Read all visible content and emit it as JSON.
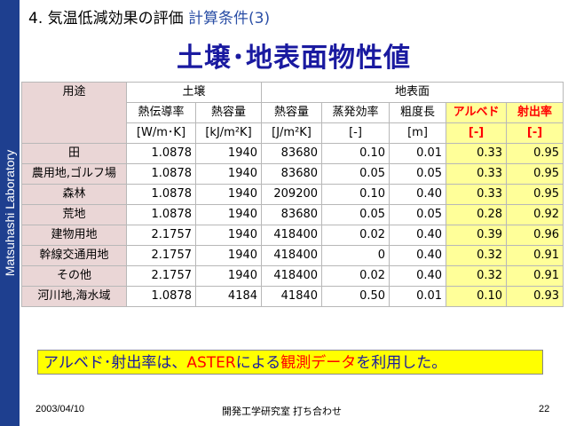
{
  "sidebar": {
    "label": "Matsuhashi Laboratory"
  },
  "heading": {
    "num": "4.",
    "main": "気温低減効果の評価",
    "sub": "計算条件(3)"
  },
  "title": "土壌･地表面物性値",
  "table": {
    "group_soil": "土壌",
    "group_surface": "地表面",
    "use_label": "用途",
    "columns": [
      {
        "name": "熱伝導率",
        "unit": "[W/m･K]"
      },
      {
        "name": "熱容量",
        "unit": "[kJ/m²K]"
      },
      {
        "name": "熱容量",
        "unit": "[J/m²K]"
      },
      {
        "name": "蒸発効率",
        "unit": "[-]"
      },
      {
        "name": "粗度長",
        "unit": "[m]"
      },
      {
        "name": "アルベド",
        "unit": "[-]"
      },
      {
        "name": "射出率",
        "unit": "[-]"
      }
    ],
    "rows": [
      {
        "label": "田",
        "values": [
          "1.0878",
          "1940",
          "83680",
          "0.10",
          "0.01",
          "0.33",
          "0.95"
        ]
      },
      {
        "label": "農用地,ゴルフ場",
        "values": [
          "1.0878",
          "1940",
          "83680",
          "0.05",
          "0.05",
          "0.33",
          "0.95"
        ]
      },
      {
        "label": "森林",
        "values": [
          "1.0878",
          "1940",
          "209200",
          "0.10",
          "0.40",
          "0.33",
          "0.95"
        ]
      },
      {
        "label": "荒地",
        "values": [
          "1.0878",
          "1940",
          "83680",
          "0.05",
          "0.05",
          "0.28",
          "0.92"
        ]
      },
      {
        "label": "建物用地",
        "values": [
          "2.1757",
          "1940",
          "418400",
          "0.02",
          "0.40",
          "0.39",
          "0.96"
        ]
      },
      {
        "label": "幹線交通用地",
        "values": [
          "2.1757",
          "1940",
          "418400",
          "0",
          "0.40",
          "0.32",
          "0.91"
        ]
      },
      {
        "label": "その他",
        "values": [
          "2.1757",
          "1940",
          "418400",
          "0.02",
          "0.40",
          "0.32",
          "0.91"
        ]
      },
      {
        "label": "河川地,海水域",
        "values": [
          "1.0878",
          "4184",
          "41840",
          "0.50",
          "0.01",
          "0.10",
          "0.93"
        ]
      }
    ]
  },
  "note": {
    "part1": "アルベド･射出率は、",
    "part2": "ASTER",
    "part3": "による",
    "part4": "観測データ",
    "part5": "を利用した。"
  },
  "footer": {
    "date": "2003/04/10",
    "center": "開発工学研究室 打ち合わせ",
    "page": "22"
  },
  "colors": {
    "sidebar": "#1e3f8f",
    "title": "#1a1aa0",
    "highlight": "#ffff99",
    "note_bg": "#ffff00",
    "accent_red": "#ff0000"
  }
}
